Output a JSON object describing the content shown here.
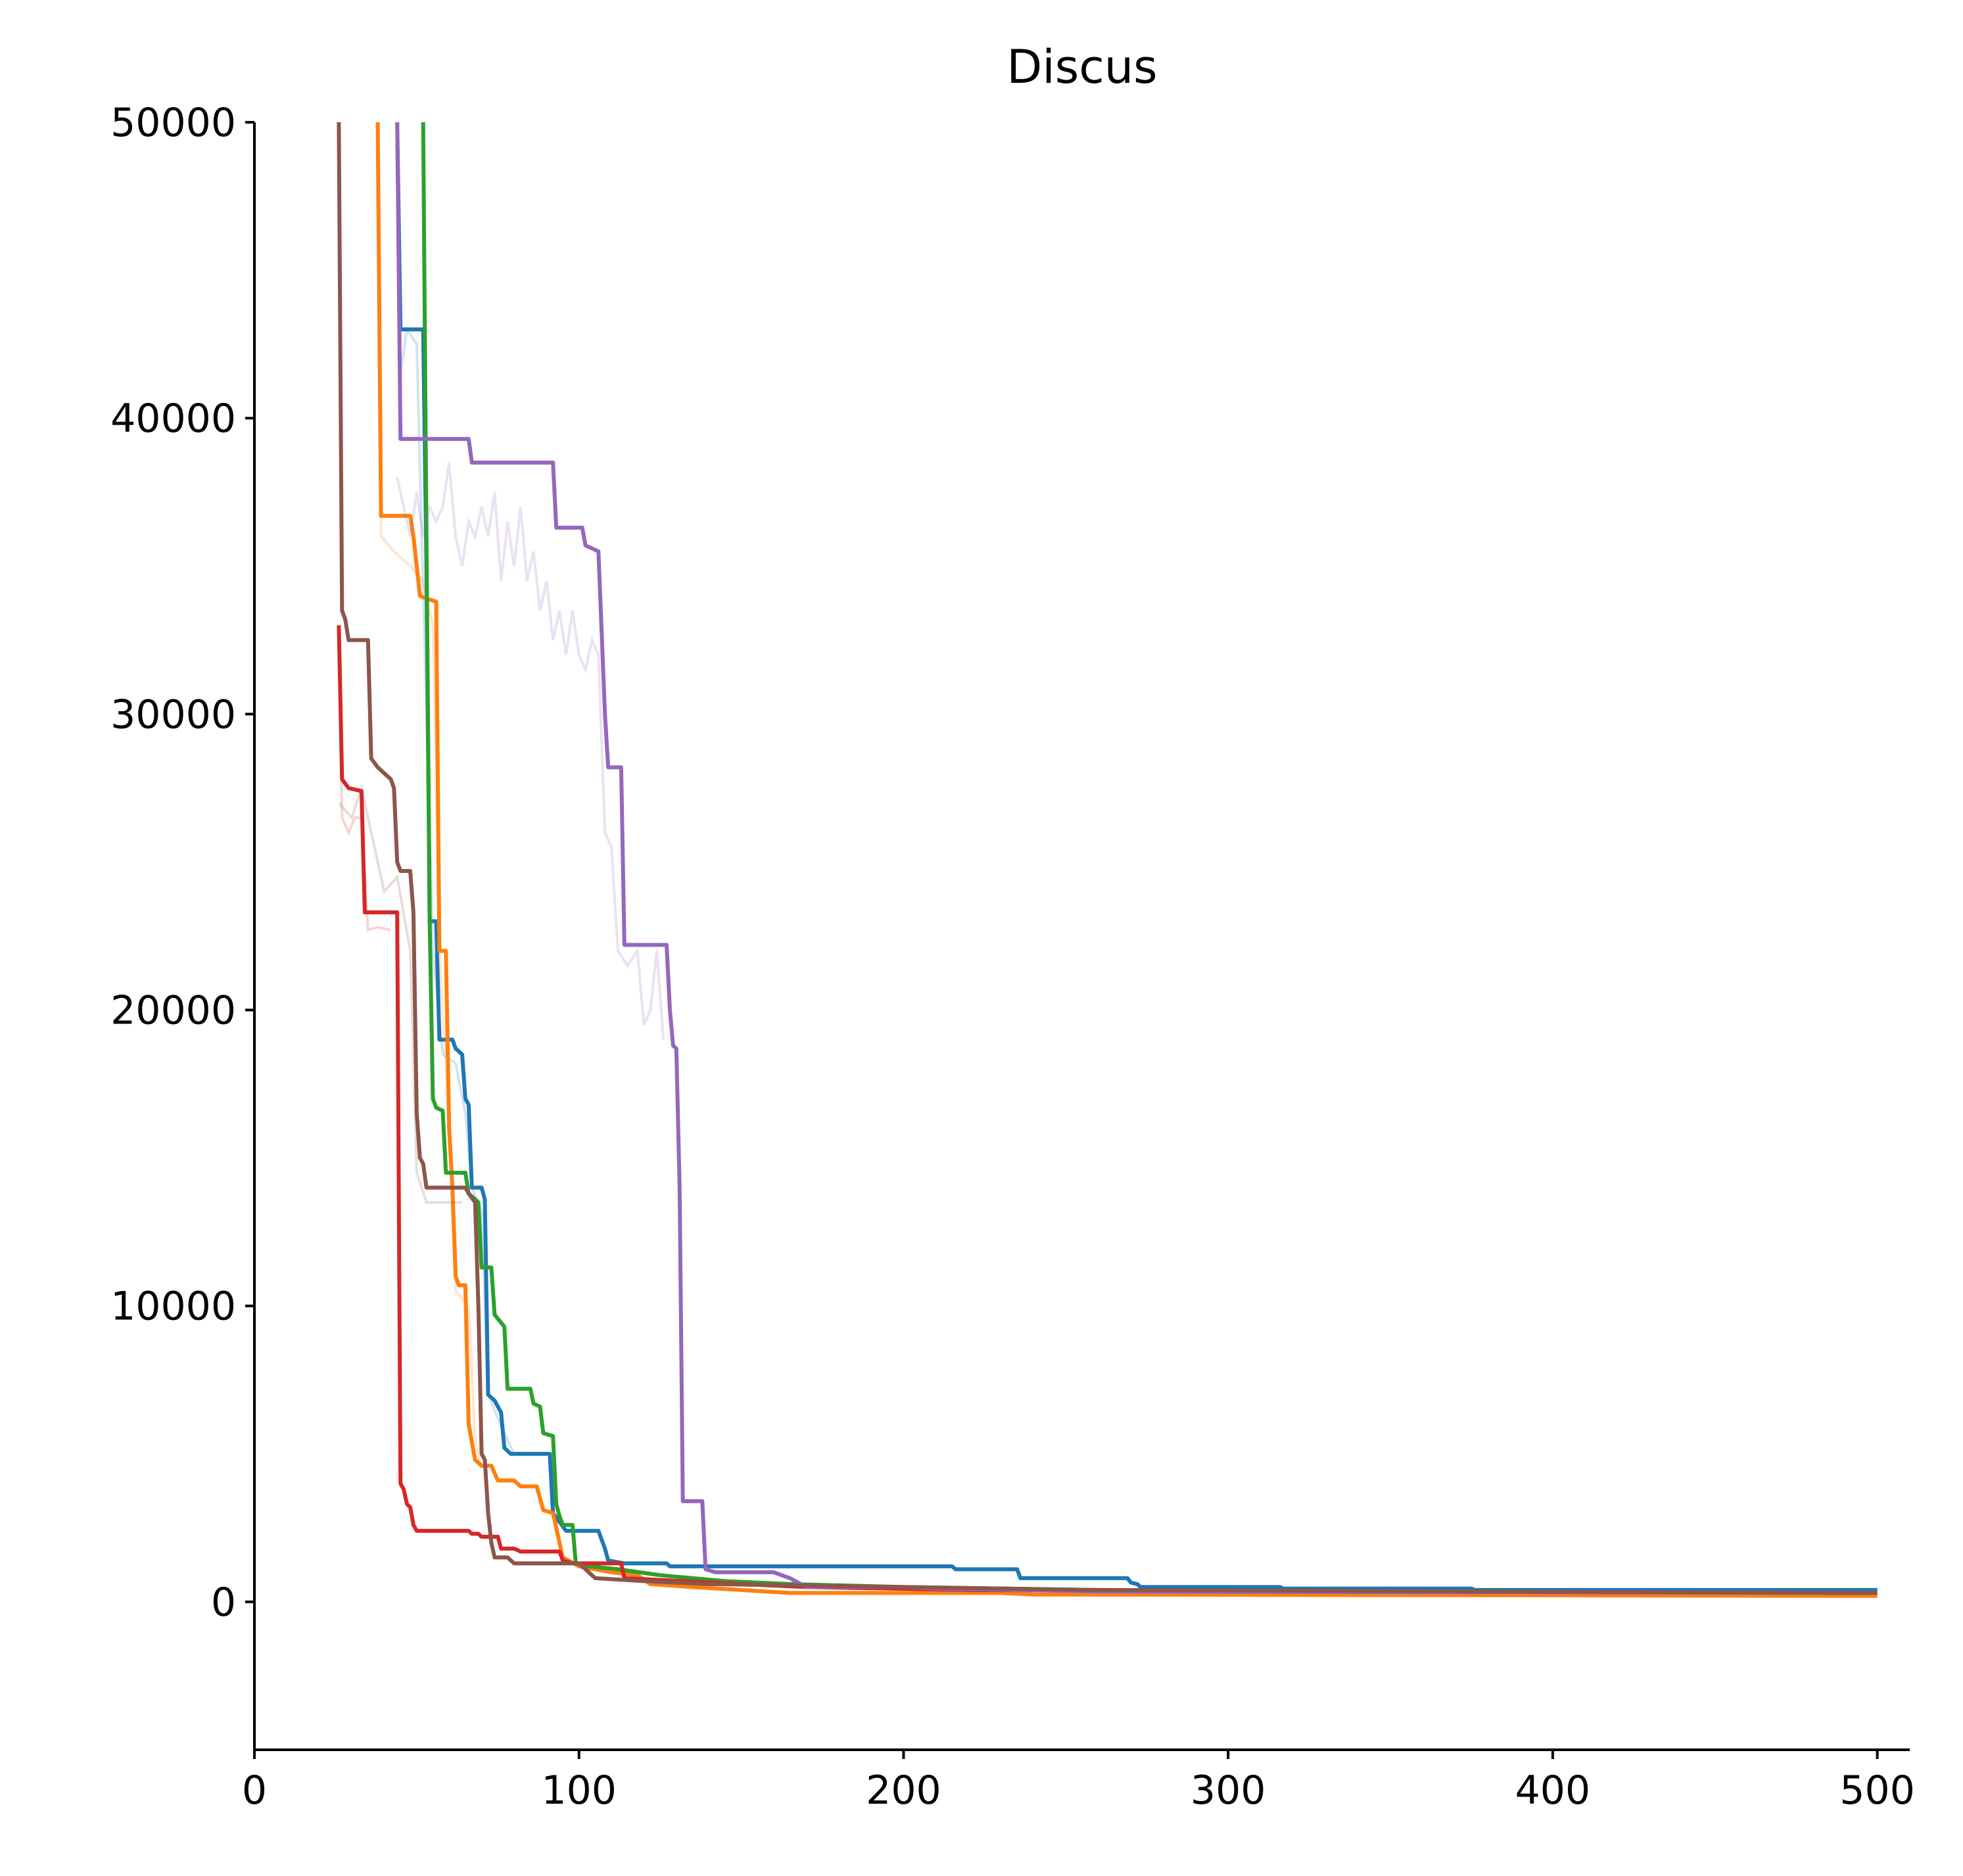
{
  "chart_data": {
    "type": "line",
    "title": "Discus",
    "xlabel": "",
    "ylabel": "",
    "xlim": [
      0,
      510
    ],
    "ylim": [
      -5000,
      50000
    ],
    "xticks": [
      0,
      100,
      200,
      300,
      400,
      500
    ],
    "yticks": [
      0,
      10000,
      20000,
      30000,
      40000,
      50000
    ],
    "grid": false,
    "legend": "none",
    "series": [
      {
        "color": "#1f77b4",
        "faint_points": [
          [
            44,
            50000
          ],
          [
            45,
            41500
          ],
          [
            47,
            43000
          ],
          [
            50,
            42500
          ],
          [
            53,
            30000
          ],
          [
            55,
            22000
          ],
          [
            58,
            18500
          ],
          [
            62,
            18200
          ],
          [
            65,
            16500
          ],
          [
            67,
            14000
          ],
          [
            70,
            13200
          ],
          [
            72,
            7000
          ],
          [
            75,
            6200
          ],
          [
            80,
            5000
          ]
        ],
        "points": [
          [
            44,
            50000
          ],
          [
            45,
            43000
          ],
          [
            52,
            43000
          ],
          [
            53,
            35000
          ],
          [
            54,
            23000
          ],
          [
            56,
            23000
          ],
          [
            57,
            19000
          ],
          [
            61,
            19000
          ],
          [
            62,
            18700
          ],
          [
            64,
            18500
          ],
          [
            65,
            17000
          ],
          [
            66,
            16800
          ],
          [
            67,
            14000
          ],
          [
            70,
            14000
          ],
          [
            71,
            13600
          ],
          [
            72,
            7000
          ],
          [
            74,
            6800
          ],
          [
            76,
            6400
          ],
          [
            77,
            5200
          ],
          [
            79,
            5000
          ],
          [
            91,
            5000
          ],
          [
            92,
            3000
          ],
          [
            96,
            2400
          ],
          [
            106,
            2400
          ],
          [
            108,
            1800
          ],
          [
            109,
            1400
          ],
          [
            114,
            1300
          ],
          [
            127,
            1300
          ],
          [
            128,
            1200
          ],
          [
            215,
            1200
          ],
          [
            216,
            1100
          ],
          [
            235,
            1100
          ],
          [
            236,
            800
          ],
          [
            269,
            800
          ],
          [
            270,
            650
          ],
          [
            272,
            600
          ],
          [
            273,
            500
          ],
          [
            316,
            500
          ],
          [
            317,
            450
          ],
          [
            375,
            450
          ],
          [
            376,
            400
          ],
          [
            500,
            400
          ]
        ]
      },
      {
        "color": "#ff7f0e",
        "faint_points": [
          [
            38,
            50000
          ],
          [
            39,
            36000
          ],
          [
            43,
            35500
          ],
          [
            48,
            35000
          ],
          [
            52,
            34500
          ],
          [
            55,
            33000
          ],
          [
            57,
            22000
          ],
          [
            60,
            16000
          ],
          [
            62,
            10500
          ],
          [
            66,
            10000
          ],
          [
            68,
            5500
          ],
          [
            70,
            4500
          ]
        ],
        "points": [
          [
            38,
            50000
          ],
          [
            39,
            36700
          ],
          [
            48,
            36700
          ],
          [
            49,
            36000
          ],
          [
            51,
            34000
          ],
          [
            53,
            33900
          ],
          [
            56,
            33800
          ],
          [
            57,
            22000
          ],
          [
            59,
            22000
          ],
          [
            60,
            16000
          ],
          [
            61,
            14000
          ],
          [
            62,
            11000
          ],
          [
            63,
            10700
          ],
          [
            65,
            10700
          ],
          [
            66,
            6000
          ],
          [
            68,
            4800
          ],
          [
            70,
            4600
          ],
          [
            73,
            4600
          ],
          [
            75,
            4100
          ],
          [
            80,
            4100
          ],
          [
            82,
            3900
          ],
          [
            87,
            3900
          ],
          [
            89,
            3100
          ],
          [
            92,
            3000
          ],
          [
            93,
            2500
          ],
          [
            95,
            1500
          ],
          [
            100,
            1200
          ],
          [
            110,
            1000
          ],
          [
            118,
            900
          ],
          [
            122,
            600
          ],
          [
            135,
            500
          ],
          [
            150,
            400
          ],
          [
            165,
            300
          ],
          [
            230,
            300
          ],
          [
            240,
            250
          ],
          [
            500,
            200
          ]
        ]
      },
      {
        "color": "#2ca02c",
        "faint_points": [],
        "points": [
          [
            52,
            50000
          ],
          [
            53,
            36000
          ],
          [
            54,
            23000
          ],
          [
            55,
            17000
          ],
          [
            56,
            16700
          ],
          [
            58,
            16600
          ],
          [
            59,
            14500
          ],
          [
            61,
            14500
          ],
          [
            65,
            14500
          ],
          [
            66,
            13800
          ],
          [
            69,
            13500
          ],
          [
            70,
            11300
          ],
          [
            73,
            11300
          ],
          [
            74,
            9700
          ],
          [
            77,
            9300
          ],
          [
            78,
            7200
          ],
          [
            85,
            7200
          ],
          [
            86,
            6700
          ],
          [
            88,
            6600
          ],
          [
            89,
            5700
          ],
          [
            92,
            5600
          ],
          [
            93,
            3300
          ],
          [
            94,
            2900
          ],
          [
            95,
            2600
          ],
          [
            98,
            2600
          ],
          [
            99,
            1300
          ],
          [
            103,
            1200
          ],
          [
            112,
            1100
          ],
          [
            125,
            900
          ],
          [
            145,
            700
          ],
          [
            165,
            600
          ],
          [
            200,
            500
          ],
          [
            260,
            400
          ],
          [
            320,
            350
          ],
          [
            500,
            300
          ]
        ]
      },
      {
        "color": "#d62728",
        "faint_points": [
          [
            26,
            33000
          ],
          [
            27,
            26500
          ],
          [
            29,
            26000
          ],
          [
            31,
            26500
          ],
          [
            33,
            26500
          ],
          [
            35,
            22700
          ],
          [
            38,
            22800
          ],
          [
            42,
            22700
          ]
        ],
        "points": [
          [
            26,
            33000
          ],
          [
            27,
            27800
          ],
          [
            29,
            27500
          ],
          [
            33,
            27400
          ],
          [
            34,
            23300
          ],
          [
            44,
            23300
          ],
          [
            45,
            4000
          ],
          [
            46,
            3800
          ],
          [
            47,
            3300
          ],
          [
            48,
            3200
          ],
          [
            49,
            2600
          ],
          [
            50,
            2400
          ],
          [
            66,
            2400
          ],
          [
            67,
            2300
          ],
          [
            69,
            2300
          ],
          [
            70,
            2200
          ],
          [
            75,
            2200
          ],
          [
            76,
            1800
          ],
          [
            80,
            1800
          ],
          [
            82,
            1700
          ],
          [
            94,
            1700
          ],
          [
            95,
            1400
          ],
          [
            98,
            1300
          ],
          [
            113,
            1300
          ],
          [
            114,
            800
          ],
          [
            150,
            600
          ],
          [
            170,
            500
          ],
          [
            220,
            400
          ],
          [
            500,
            300
          ]
        ]
      },
      {
        "color": "#9467bd",
        "faint_points": [
          [
            44,
            38000
          ],
          [
            46,
            37000
          ],
          [
            48,
            36000
          ],
          [
            50,
            37500
          ],
          [
            52,
            36000
          ],
          [
            54,
            37000
          ],
          [
            56,
            36500
          ],
          [
            58,
            37000
          ],
          [
            60,
            38500
          ],
          [
            62,
            36000
          ],
          [
            64,
            35000
          ],
          [
            66,
            36500
          ],
          [
            68,
            36000
          ],
          [
            70,
            37000
          ],
          [
            72,
            36000
          ],
          [
            74,
            37500
          ],
          [
            76,
            34500
          ],
          [
            78,
            36500
          ],
          [
            80,
            35000
          ],
          [
            82,
            37000
          ],
          [
            84,
            34500
          ],
          [
            86,
            35500
          ],
          [
            88,
            33500
          ],
          [
            90,
            34500
          ],
          [
            92,
            32500
          ],
          [
            94,
            33500
          ],
          [
            96,
            32000
          ],
          [
            98,
            33500
          ],
          [
            100,
            32000
          ],
          [
            102,
            31500
          ],
          [
            104,
            32500
          ],
          [
            106,
            32000
          ],
          [
            108,
            26000
          ],
          [
            110,
            25500
          ],
          [
            112,
            22000
          ],
          [
            115,
            21500
          ],
          [
            118,
            22000
          ],
          [
            120,
            19500
          ],
          [
            122,
            20000
          ],
          [
            124,
            22000
          ],
          [
            126,
            19000
          ]
        ],
        "points": [
          [
            44,
            50000
          ],
          [
            45,
            39300
          ],
          [
            54,
            39300
          ],
          [
            66,
            39300
          ],
          [
            67,
            38500
          ],
          [
            85,
            38500
          ],
          [
            92,
            38500
          ],
          [
            93,
            36300
          ],
          [
            101,
            36300
          ],
          [
            102,
            35700
          ],
          [
            104,
            35600
          ],
          [
            106,
            35500
          ],
          [
            108,
            30000
          ],
          [
            109,
            28200
          ],
          [
            113,
            28200
          ],
          [
            114,
            22200
          ],
          [
            127,
            22200
          ],
          [
            128,
            20000
          ],
          [
            129,
            18800
          ],
          [
            130,
            18700
          ],
          [
            131,
            14000
          ],
          [
            132,
            3400
          ],
          [
            138,
            3400
          ],
          [
            139,
            1100
          ],
          [
            142,
            1000
          ],
          [
            160,
            1000
          ],
          [
            165,
            800
          ],
          [
            170,
            500
          ],
          [
            200,
            500
          ],
          [
            210,
            450
          ],
          [
            260,
            350
          ],
          [
            500,
            300
          ]
        ]
      },
      {
        "color": "#8c564b",
        "faint_points": [
          [
            26,
            27000
          ],
          [
            30,
            26500
          ],
          [
            33,
            27500
          ],
          [
            36,
            26000
          ],
          [
            40,
            24000
          ],
          [
            44,
            24500
          ],
          [
            48,
            22000
          ],
          [
            50,
            14500
          ],
          [
            53,
            13500
          ],
          [
            58,
            13500
          ],
          [
            64,
            13500
          ]
        ],
        "points": [
          [
            26,
            50000
          ],
          [
            27,
            33500
          ],
          [
            28,
            33200
          ],
          [
            29,
            32500
          ],
          [
            35,
            32500
          ],
          [
            36,
            28500
          ],
          [
            38,
            28200
          ],
          [
            40,
            28000
          ],
          [
            42,
            27800
          ],
          [
            43,
            27500
          ],
          [
            44,
            25000
          ],
          [
            45,
            24700
          ],
          [
            48,
            24700
          ],
          [
            49,
            23300
          ],
          [
            50,
            16500
          ],
          [
            51,
            15000
          ],
          [
            52,
            14800
          ],
          [
            53,
            14000
          ],
          [
            60,
            14000
          ],
          [
            65,
            14000
          ],
          [
            66,
            13800
          ],
          [
            68,
            13500
          ],
          [
            69,
            10000
          ],
          [
            70,
            5000
          ],
          [
            71,
            4800
          ],
          [
            72,
            3000
          ],
          [
            73,
            2000
          ],
          [
            74,
            1500
          ],
          [
            78,
            1500
          ],
          [
            80,
            1300
          ],
          [
            100,
            1300
          ],
          [
            105,
            800
          ],
          [
            120,
            700
          ],
          [
            140,
            600
          ],
          [
            200,
            500
          ],
          [
            230,
            450
          ],
          [
            260,
            400
          ],
          [
            500,
            300
          ]
        ]
      }
    ]
  }
}
